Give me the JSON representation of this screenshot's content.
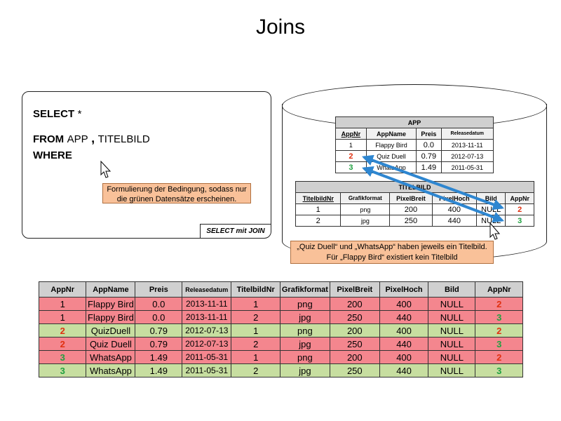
{
  "title": "Joins",
  "sql": {
    "select_kw": "SELECT",
    "select_star": "*",
    "from_kw": "FROM",
    "from_table1": "APP",
    "from_comma": ",",
    "from_table2": "TITELBILD",
    "where_kw": "WHERE",
    "hint": "Formulierung der Bedingung, sodass nur die grünen Datensätze erscheinen.",
    "tag": "SELECT mit JOIN"
  },
  "app_table": {
    "caption": "APP",
    "headers": [
      "AppNr",
      "AppName",
      "Preis",
      "Releasedatum"
    ],
    "rows": [
      [
        "1",
        "Flappy Bird",
        "0.0",
        "2013-11-11"
      ],
      [
        "2",
        "Quiz Duell",
        "0.79",
        "2012-07-13"
      ],
      [
        "3",
        "WhatsApp",
        "1.49",
        "2011-05-31"
      ]
    ]
  },
  "titelbild_table": {
    "caption": "TITELBILD",
    "headers": [
      "TitelbildNr",
      "Grafikformat",
      "PixelBreit",
      "PixelHoch",
      "Bild",
      "AppNr"
    ],
    "rows": [
      [
        "1",
        "png",
        "200",
        "400",
        "NULL",
        "2"
      ],
      [
        "2",
        "jpg",
        "250",
        "440",
        "NULL",
        "3"
      ]
    ]
  },
  "db_hint": "„Quiz Duell“ und „WhatsApp“ haben jeweils ein Titelbild. Für „Flappy Bird“ existiert kein Titelbild",
  "result_table": {
    "headers": [
      "AppNr",
      "AppName",
      "Preis",
      "Releasedatum",
      "TitelbildNr",
      "Grafikformat",
      "PixelBreit",
      "PixelHoch",
      "Bild",
      "AppNr"
    ],
    "rows": [
      {
        "status": "red",
        "cells": [
          "1",
          "Flappy Bird",
          "0.0",
          "2013-11-11",
          "1",
          "png",
          "200",
          "400",
          "NULL",
          "2"
        ]
      },
      {
        "status": "red",
        "cells": [
          "1",
          "Flappy Bird",
          "0.0",
          "2013-11-11",
          "2",
          "jpg",
          "250",
          "440",
          "NULL",
          "3"
        ]
      },
      {
        "status": "green",
        "cells": [
          "2",
          "QuizDuell",
          "0.79",
          "2012-07-13",
          "1",
          "png",
          "200",
          "400",
          "NULL",
          "2"
        ]
      },
      {
        "status": "red",
        "cells": [
          "2",
          "Quiz Duell",
          "0.79",
          "2012-07-13",
          "2",
          "jpg",
          "250",
          "440",
          "NULL",
          "3"
        ]
      },
      {
        "status": "red",
        "cells": [
          "3",
          "WhatsApp",
          "1.49",
          "2011-05-31",
          "1",
          "png",
          "200",
          "400",
          "NULL",
          "2"
        ]
      },
      {
        "status": "green",
        "cells": [
          "3",
          "WhatsApp",
          "1.49",
          "2011-05-31",
          "2",
          "jpg",
          "250",
          "440",
          "NULL",
          "3"
        ]
      }
    ]
  },
  "colors": {
    "row_red": "#f4868e",
    "row_green": "#c7dea0",
    "id_red": "#e03010",
    "id_green": "#20a040",
    "arrow_blue": "#2e86d0",
    "hint_fill": "#f9c199"
  }
}
